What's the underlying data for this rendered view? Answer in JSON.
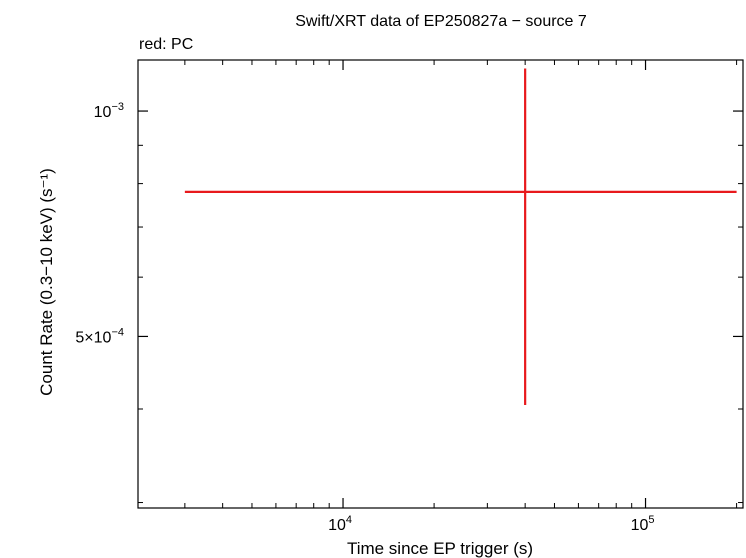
{
  "chart_data": {
    "type": "scatter",
    "title": "Swift/XRT data of EP250827a − source 7",
    "subtitle": "red: PC",
    "xlabel": "Time since EP trigger (s)",
    "ylabel": "Count Rate (0.3−10 keV) (s⁻¹)",
    "x_scale": "log",
    "y_scale": "log",
    "xlim": [
      2100,
      210000
    ],
    "ylim": [
      0.000295,
      0.00117
    ],
    "x_ticks": [
      {
        "value": 10000,
        "label_base": "10",
        "label_exp": "4"
      },
      {
        "value": 100000,
        "label_base": "10",
        "label_exp": "5"
      }
    ],
    "y_ticks": [
      {
        "value": 0.001,
        "label_base": "10",
        "label_exp": "−3"
      },
      {
        "value": 0.0005,
        "label_base": "5×10",
        "label_exp": "−4"
      }
    ],
    "grid": false,
    "series": [
      {
        "name": "PC",
        "color": "#e8191c",
        "points": [
          {
            "x": 40000,
            "y": 0.00078,
            "x_low": 3000,
            "x_high": 200000,
            "y_low": 0.000405,
            "y_high": 0.00114
          }
        ]
      }
    ]
  }
}
